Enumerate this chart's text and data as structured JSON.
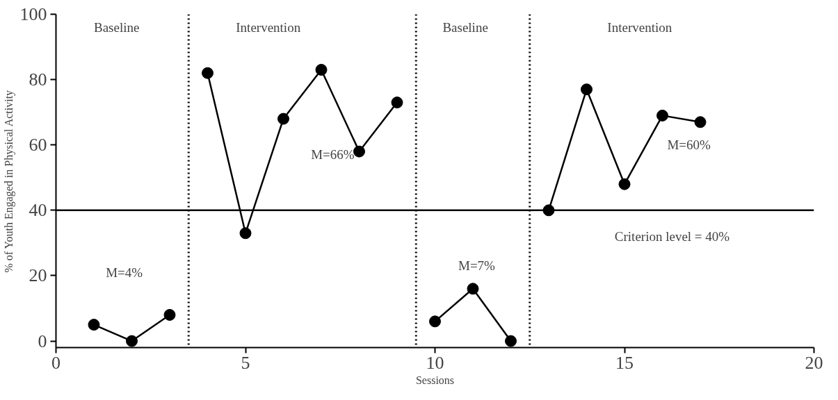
{
  "chart_data": {
    "type": "line",
    "xlabel": "Sessions",
    "ylabel": "% of Youth Engaged in Physical Activity",
    "xlim": [
      0,
      20
    ],
    "xticks": [
      0,
      5,
      10,
      15,
      20
    ],
    "ylim": [
      -2,
      100
    ],
    "yticks": [
      0,
      20,
      40,
      60,
      80,
      100
    ],
    "grid": false,
    "marker": "circle",
    "line_style": "solid",
    "series": [
      {
        "color": "#000000",
        "x": [
          1,
          2,
          3
        ],
        "values": [
          5,
          0,
          8
        ]
      },
      {
        "color": "#000000",
        "x": [
          4,
          5,
          6,
          7,
          8,
          9
        ],
        "values": [
          82,
          33,
          68,
          83,
          58,
          73
        ]
      },
      {
        "color": "#000000",
        "x": [
          10,
          11,
          12
        ],
        "values": [
          6,
          16,
          0
        ]
      },
      {
        "color": "#000000",
        "x": [
          13,
          14,
          15,
          16,
          17
        ],
        "values": [
          40,
          77,
          48,
          69,
          67
        ]
      }
    ],
    "ref_lines": [
      {
        "axis": "x",
        "value": 3.5,
        "line_style": "dotted",
        "color": "#000000"
      },
      {
        "axis": "x",
        "value": 9.5,
        "line_style": "dotted",
        "color": "#000000"
      },
      {
        "axis": "x",
        "value": 12.5,
        "line_style": "dotted",
        "color": "#000000"
      },
      {
        "axis": "y",
        "value": 40,
        "line_style": "solid",
        "color": "#000000"
      }
    ],
    "annotations": [
      "Baseline",
      "Intervention",
      "Baseline",
      "Intervention",
      "M=4%",
      "M=66%",
      "M=7%",
      "M=60%",
      "Criterion  level = 40%"
    ]
  }
}
